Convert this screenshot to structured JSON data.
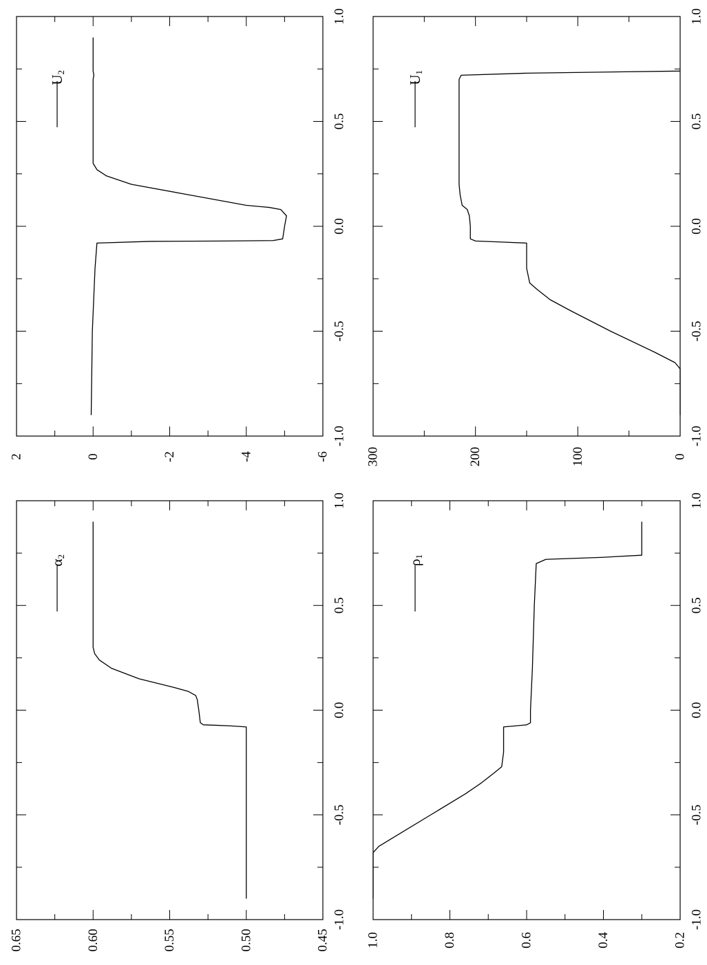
{
  "figure": {
    "rotation_note": "page rotated 90 degrees counter-clockwise"
  },
  "chart_data": [
    {
      "id": "alpha2",
      "type": "line",
      "title": "",
      "xlabel": "",
      "ylabel": "",
      "xlim": [
        -1.0,
        1.0
      ],
      "ylim": [
        0.45,
        0.65
      ],
      "x_ticks": [
        "-1.0",
        "-0.5",
        "0.0",
        "0.5",
        "1.0"
      ],
      "y_ticks": [
        "0.45",
        "0.50",
        "0.55",
        "0.60",
        "0.65"
      ],
      "legend": {
        "symbol": "α",
        "subscript": "2",
        "placement": "top-right"
      },
      "series": [
        {
          "name": "α2",
          "x": [
            -0.9,
            -0.08,
            -0.075,
            -0.072,
            -0.07,
            -0.06,
            0.0,
            0.05,
            0.07,
            0.09,
            0.11,
            0.15,
            0.2,
            0.24,
            0.27,
            0.3,
            0.5,
            0.7,
            0.9
          ],
          "y": [
            0.5,
            0.5,
            0.51,
            0.52,
            0.528,
            0.53,
            0.531,
            0.532,
            0.533,
            0.538,
            0.548,
            0.57,
            0.588,
            0.596,
            0.599,
            0.6,
            0.6,
            0.6,
            0.6
          ]
        }
      ]
    },
    {
      "id": "U2",
      "type": "line",
      "title": "",
      "xlabel": "",
      "ylabel": "",
      "xlim": [
        -1.0,
        1.0
      ],
      "ylim": [
        -6,
        2
      ],
      "x_ticks": [
        "-1.0",
        "-0.5",
        "0.0",
        "0.5",
        "1.0"
      ],
      "y_ticks": [
        "-6",
        "-4",
        "-2",
        "0",
        "2"
      ],
      "legend": {
        "symbol": "U",
        "subscript": "2",
        "placement": "top-right"
      },
      "series": [
        {
          "name": "U2",
          "x": [
            -0.9,
            -0.5,
            -0.2,
            -0.08,
            -0.072,
            -0.07,
            -0.068,
            -0.06,
            0.0,
            0.05,
            0.08,
            0.09,
            0.1,
            0.15,
            0.2,
            0.24,
            0.27,
            0.3,
            0.5,
            0.7,
            0.72,
            0.74,
            0.9
          ],
          "y": [
            0.05,
            0.02,
            -0.05,
            -0.1,
            -1.5,
            -3.5,
            -4.7,
            -4.95,
            -5.0,
            -5.05,
            -4.9,
            -4.6,
            -4.0,
            -2.5,
            -1.0,
            -0.35,
            -0.1,
            0.0,
            0.0,
            0.0,
            -0.02,
            0.0,
            0.0
          ]
        }
      ]
    },
    {
      "id": "rho1",
      "type": "line",
      "title": "",
      "xlabel": "",
      "ylabel": "",
      "xlim": [
        -1.0,
        1.0
      ],
      "ylim": [
        0.2,
        1.0
      ],
      "x_ticks": [
        "-1.0",
        "-0.5",
        "0.0",
        "0.5",
        "1.0"
      ],
      "y_ticks": [
        "0.2",
        "0.4",
        "0.6",
        "0.8",
        "1.0"
      ],
      "legend": {
        "symbol": "ρ",
        "subscript": "1",
        "placement": "top-right"
      },
      "series": [
        {
          "name": "ρ1",
          "x": [
            -0.9,
            -0.68,
            -0.65,
            -0.6,
            -0.5,
            -0.4,
            -0.35,
            -0.3,
            -0.27,
            -0.2,
            -0.1,
            -0.08,
            -0.075,
            -0.07,
            -0.06,
            0.0,
            0.2,
            0.5,
            0.7,
            0.72,
            0.73,
            0.74,
            0.9
          ],
          "y": [
            1.0,
            1.0,
            0.985,
            0.94,
            0.85,
            0.76,
            0.72,
            0.685,
            0.665,
            0.66,
            0.66,
            0.66,
            0.63,
            0.6,
            0.59,
            0.59,
            0.585,
            0.58,
            0.575,
            0.55,
            0.4,
            0.3,
            0.3
          ]
        }
      ]
    },
    {
      "id": "U1",
      "type": "line",
      "title": "",
      "xlabel": "",
      "ylabel": "",
      "xlim": [
        -1.0,
        1.0
      ],
      "ylim": [
        0,
        300
      ],
      "x_ticks": [
        "-1.0",
        "-0.5",
        "0.0",
        "0.5",
        "1.0"
      ],
      "y_ticks": [
        "0",
        "100",
        "200",
        "300"
      ],
      "legend": {
        "symbol": "U",
        "subscript": "1",
        "placement": "top-right"
      },
      "series": [
        {
          "name": "U1",
          "x": [
            -0.9,
            -0.68,
            -0.65,
            -0.6,
            -0.5,
            -0.4,
            -0.35,
            -0.3,
            -0.27,
            -0.2,
            -0.1,
            -0.08,
            -0.075,
            -0.07,
            -0.06,
            0.0,
            0.05,
            0.08,
            0.1,
            0.15,
            0.2,
            0.25,
            0.3,
            0.5,
            0.7,
            0.72,
            0.73,
            0.74
          ],
          "y": [
            0,
            0,
            5,
            25,
            68,
            108,
            127,
            140,
            147,
            150,
            150,
            150,
            175,
            200,
            205,
            205,
            206,
            208,
            213,
            215,
            216,
            216,
            216,
            216,
            216,
            214,
            150,
            0
          ]
        }
      ]
    }
  ]
}
